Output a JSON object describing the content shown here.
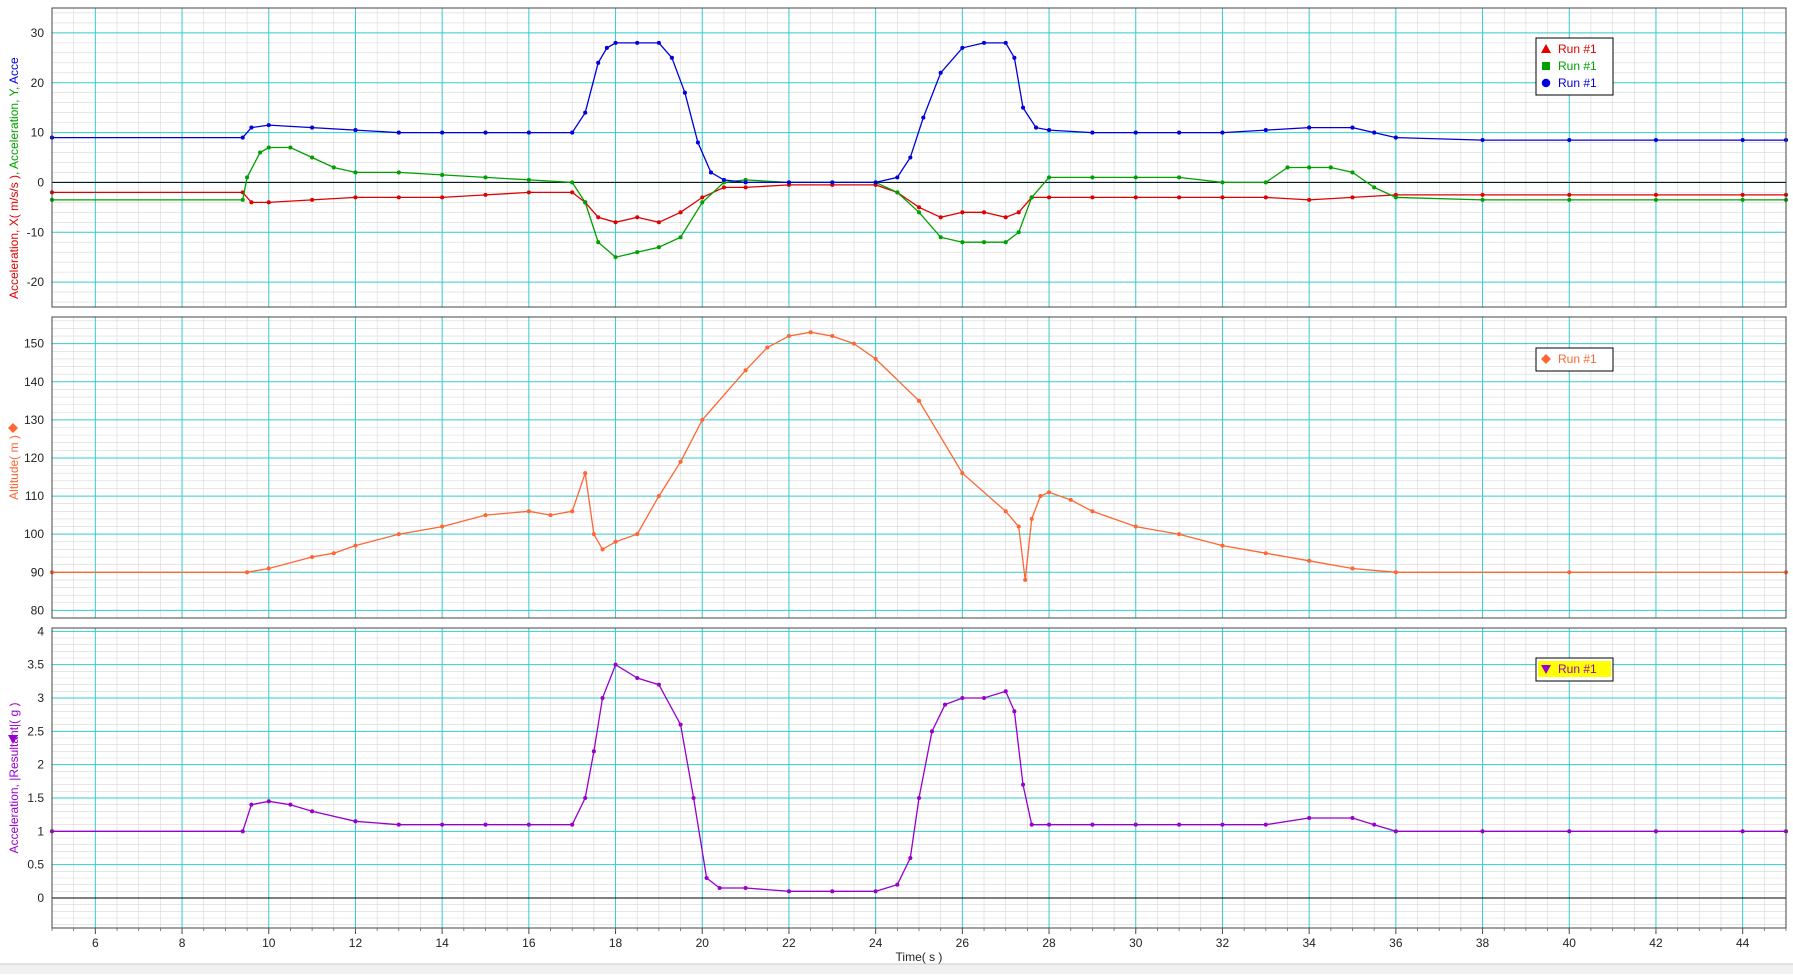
{
  "x_axis": {
    "label": "Time( s )",
    "range": [
      5,
      45
    ],
    "ticks": [
      6,
      8,
      10,
      12,
      14,
      16,
      18,
      20,
      22,
      24,
      26,
      28,
      30,
      32,
      34,
      36,
      38,
      40,
      42,
      44
    ]
  },
  "colors": {
    "grid_major": "#33cccc",
    "grid_minor": "#d8d8d8",
    "red": "#e00000",
    "green": "#00a000",
    "blue": "#0000dd",
    "orange": "#ff6633",
    "purple": "#9900cc",
    "legend_yellow": "#ffff00"
  },
  "chart_data": [
    {
      "type": "line",
      "ylabel_parts": [
        "Acceleration, X( m/s/s )",
        ", Acceleration, Y,",
        " Acce"
      ],
      "ylim": [
        -25,
        35
      ],
      "yticks": [
        -20,
        -10,
        0,
        10,
        20,
        30
      ],
      "zero_line": true,
      "legend_position": "top-right",
      "series": [
        {
          "name": "Run #1",
          "marker": "triangle",
          "color": "red",
          "x": [
            5,
            9.4,
            9.6,
            10,
            11,
            12,
            13,
            14,
            15,
            16,
            17,
            17.3,
            17.6,
            18,
            18.5,
            19,
            19.5,
            20,
            20.5,
            21,
            22,
            23,
            24,
            24.5,
            25,
            25.5,
            26,
            26.5,
            27,
            27.3,
            27.6,
            28,
            29,
            30,
            31,
            32,
            33,
            34,
            35,
            36,
            38,
            40,
            42,
            44,
            45
          ],
          "y": [
            -2,
            -2,
            -4,
            -4,
            -3.5,
            -3,
            -3,
            -3,
            -2.5,
            -2,
            -2,
            -4,
            -7,
            -8,
            -7,
            -8,
            -6,
            -3,
            -1,
            -1,
            -0.5,
            -0.5,
            -0.5,
            -2,
            -5,
            -7,
            -6,
            -6,
            -7,
            -6,
            -3,
            -3,
            -3,
            -3,
            -3,
            -3,
            -3,
            -3.5,
            -3,
            -2.5,
            -2.5,
            -2.5,
            -2.5,
            -2.5,
            -2.5
          ]
        },
        {
          "name": "Run #1",
          "marker": "square",
          "color": "green",
          "x": [
            5,
            9.4,
            9.5,
            9.8,
            10,
            10.5,
            11,
            11.5,
            12,
            13,
            14,
            15,
            16,
            17,
            17.3,
            17.6,
            18,
            18.5,
            19,
            19.5,
            20,
            20.5,
            21,
            22,
            23,
            24,
            24.5,
            25,
            25.5,
            26,
            26.5,
            27,
            27.3,
            27.6,
            28,
            29,
            30,
            31,
            32,
            33,
            33.5,
            34,
            34.5,
            35,
            35.5,
            36,
            38,
            40,
            42,
            44,
            45
          ],
          "y": [
            -3.5,
            -3.5,
            1,
            6,
            7,
            7,
            5,
            3,
            2,
            2,
            1.5,
            1,
            0.5,
            0,
            -4,
            -12,
            -15,
            -14,
            -13,
            -11,
            -4,
            0,
            0.5,
            0,
            0,
            0,
            -2,
            -6,
            -11,
            -12,
            -12,
            -12,
            -10,
            -3,
            1,
            1,
            1,
            1,
            0,
            0,
            3,
            3,
            3,
            2,
            -1,
            -3,
            -3.5,
            -3.5,
            -3.5,
            -3.5,
            -3.5
          ]
        },
        {
          "name": "Run #1",
          "marker": "circle",
          "color": "blue",
          "x": [
            5,
            9.4,
            9.6,
            10,
            11,
            12,
            13,
            14,
            15,
            16,
            17,
            17.3,
            17.6,
            17.8,
            18,
            18.5,
            19,
            19.3,
            19.6,
            19.9,
            20.2,
            20.5,
            21,
            22,
            23,
            24,
            24.5,
            24.8,
            25.1,
            25.5,
            26,
            26.5,
            27,
            27.2,
            27.4,
            27.7,
            28,
            29,
            30,
            31,
            32,
            33,
            34,
            35,
            35.5,
            36,
            38,
            40,
            42,
            44,
            45
          ],
          "y": [
            9,
            9,
            11,
            11.5,
            11,
            10.5,
            10,
            10,
            10,
            10,
            10,
            14,
            24,
            27,
            28,
            28,
            28,
            25,
            18,
            8,
            2,
            0.5,
            0,
            0,
            0,
            0,
            1,
            5,
            13,
            22,
            27,
            28,
            28,
            25,
            15,
            11,
            10.5,
            10,
            10,
            10,
            10,
            10.5,
            11,
            11,
            10,
            9,
            8.5,
            8.5,
            8.5,
            8.5,
            8.5
          ]
        }
      ]
    },
    {
      "type": "line",
      "ylabel": "Altitude( m )",
      "ylim": [
        78,
        157
      ],
      "yticks": [
        80,
        90,
        100,
        110,
        120,
        130,
        140,
        150
      ],
      "legend_position": "top-right",
      "series": [
        {
          "name": "Run #1",
          "marker": "diamond",
          "color": "orange",
          "x": [
            5,
            9.5,
            10,
            11,
            11.5,
            12,
            13,
            14,
            15,
            16,
            16.5,
            17,
            17.3,
            17.5,
            17.7,
            18,
            18.5,
            19,
            19.5,
            20,
            21,
            21.5,
            22,
            22.5,
            23,
            23.5,
            24,
            25,
            26,
            27,
            27.3,
            27.45,
            27.6,
            27.8,
            28,
            28.5,
            29,
            30,
            31,
            32,
            33,
            34,
            35,
            36,
            40,
            45
          ],
          "y": [
            90,
            90,
            91,
            94,
            95,
            97,
            100,
            102,
            105,
            106,
            105,
            106,
            116,
            100,
            96,
            98,
            100,
            110,
            119,
            130,
            143,
            149,
            152,
            153,
            152,
            150,
            146,
            135,
            116,
            106,
            102,
            88,
            104,
            110,
            111,
            109,
            106,
            102,
            100,
            97,
            95,
            93,
            91,
            90,
            90,
            90
          ]
        }
      ]
    },
    {
      "type": "line",
      "ylabel": "Acceleration, |Resultant|( g )",
      "ylim": [
        -0.45,
        4.05
      ],
      "yticks": [
        0.0,
        0.5,
        1.0,
        1.5,
        2.0,
        2.5,
        3.0,
        3.5,
        4.0
      ],
      "zero_line": true,
      "legend_position": "top-right",
      "series": [
        {
          "name": "Run #1",
          "marker": "triangle-down",
          "color": "purple",
          "x": [
            5,
            9.4,
            9.6,
            10,
            10.5,
            11,
            12,
            13,
            14,
            15,
            16,
            17,
            17.3,
            17.5,
            17.7,
            18,
            18.5,
            19,
            19.5,
            19.8,
            20.1,
            20.4,
            21,
            22,
            23,
            24,
            24.5,
            24.8,
            25,
            25.3,
            25.6,
            26,
            26.5,
            27,
            27.2,
            27.4,
            27.6,
            28,
            29,
            30,
            31,
            32,
            33,
            34,
            35,
            35.5,
            36,
            38,
            40,
            42,
            44,
            45
          ],
          "y": [
            1.0,
            1.0,
            1.4,
            1.45,
            1.4,
            1.3,
            1.15,
            1.1,
            1.1,
            1.1,
            1.1,
            1.1,
            1.5,
            2.2,
            3.0,
            3.5,
            3.3,
            3.2,
            2.6,
            1.5,
            0.3,
            0.15,
            0.15,
            0.1,
            0.1,
            0.1,
            0.2,
            0.6,
            1.5,
            2.5,
            2.9,
            3.0,
            3.0,
            3.1,
            2.8,
            1.7,
            1.1,
            1.1,
            1.1,
            1.1,
            1.1,
            1.1,
            1.1,
            1.2,
            1.2,
            1.1,
            1.0,
            1.0,
            1.0,
            1.0,
            1.0,
            1.0
          ]
        }
      ]
    }
  ]
}
